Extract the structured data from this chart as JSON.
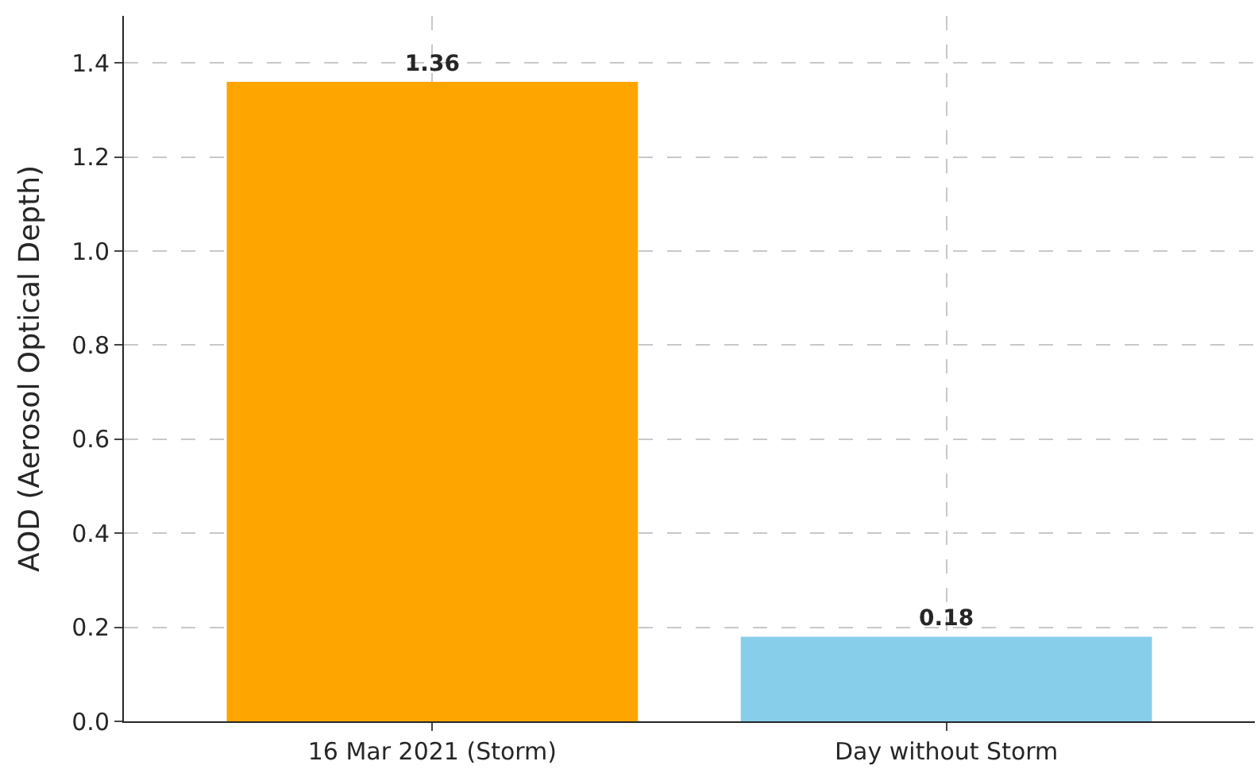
{
  "chart_data": {
    "type": "bar",
    "ylabel": "AOD (Aerosol Optical Depth)",
    "categories": [
      "16 Mar 2021 (Storm)",
      "Day without Storm"
    ],
    "values": [
      1.36,
      0.18
    ],
    "colors": [
      "#ffa500",
      "#87ceeb"
    ],
    "ylim": [
      0,
      1.5
    ],
    "yticks": [
      {
        "value": 0,
        "label": "0.0"
      },
      {
        "value": 0.2,
        "label": "0.2"
      },
      {
        "value": 0.4,
        "label": "0.4"
      },
      {
        "value": 0.6,
        "label": "0.6"
      },
      {
        "value": 0.8,
        "label": "0.8"
      },
      {
        "value": 1.0,
        "label": "1.0"
      },
      {
        "value": 1.2,
        "label": "1.2"
      },
      {
        "value": 1.4,
        "label": "1.4"
      }
    ],
    "grid": true,
    "data_labels": true
  }
}
